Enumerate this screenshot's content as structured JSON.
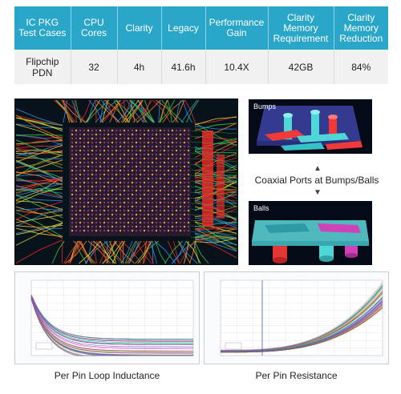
{
  "table": {
    "headers": [
      "IC PKG Test Cases",
      "CPU Cores",
      "Clarity",
      "Legacy",
      "Performance Gain",
      "Clarity Memory Requirement",
      "Clarity Memory Reduction"
    ],
    "row": [
      "Flipchip PDN",
      "32",
      "4h",
      "41.6h",
      "10.4X",
      "42GB",
      "84%"
    ]
  },
  "images": {
    "bumps_label": "Bumps",
    "balls_label": "Balls",
    "coaxial_caption": "Coaxial Ports at Bumps/Balls",
    "arrow_up": "▲",
    "arrow_down": "▼"
  },
  "plots": {
    "left_caption": "Per Pin Loop Inductance",
    "right_caption": "Per Pin Resistance"
  },
  "colors": {
    "header_bg": "#2aa6c9",
    "row_bg": "#f1f1f1",
    "package_bg": "#07121a",
    "package_body": "#2a1a30"
  }
}
